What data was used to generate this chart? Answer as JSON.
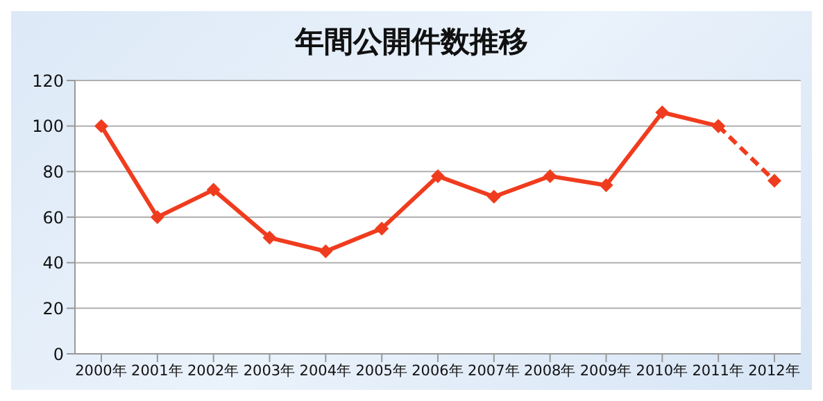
{
  "chart_data": {
    "type": "line",
    "title": "年間公開件数推移",
    "categories": [
      "2000年",
      "2001年",
      "2002年",
      "2003年",
      "2004年",
      "2005年",
      "2006年",
      "2007年",
      "2008年",
      "2009年",
      "2010年",
      "2011年",
      "2012年"
    ],
    "series": [
      {
        "color": "#f03c1e",
        "line_style": "solid",
        "values": [
          100,
          60,
          72,
          51,
          45,
          55,
          78,
          69,
          78,
          74,
          106,
          100,
          null
        ]
      },
      {
        "color": "#f03c1e",
        "line_style": "dashed",
        "values": [
          null,
          null,
          null,
          null,
          null,
          null,
          null,
          null,
          null,
          null,
          null,
          100,
          76
        ]
      }
    ],
    "ylim": [
      0,
      120
    ],
    "yticks": [
      0,
      20,
      40,
      60,
      80,
      100,
      120
    ],
    "grid": "y",
    "marker": "diamond"
  }
}
